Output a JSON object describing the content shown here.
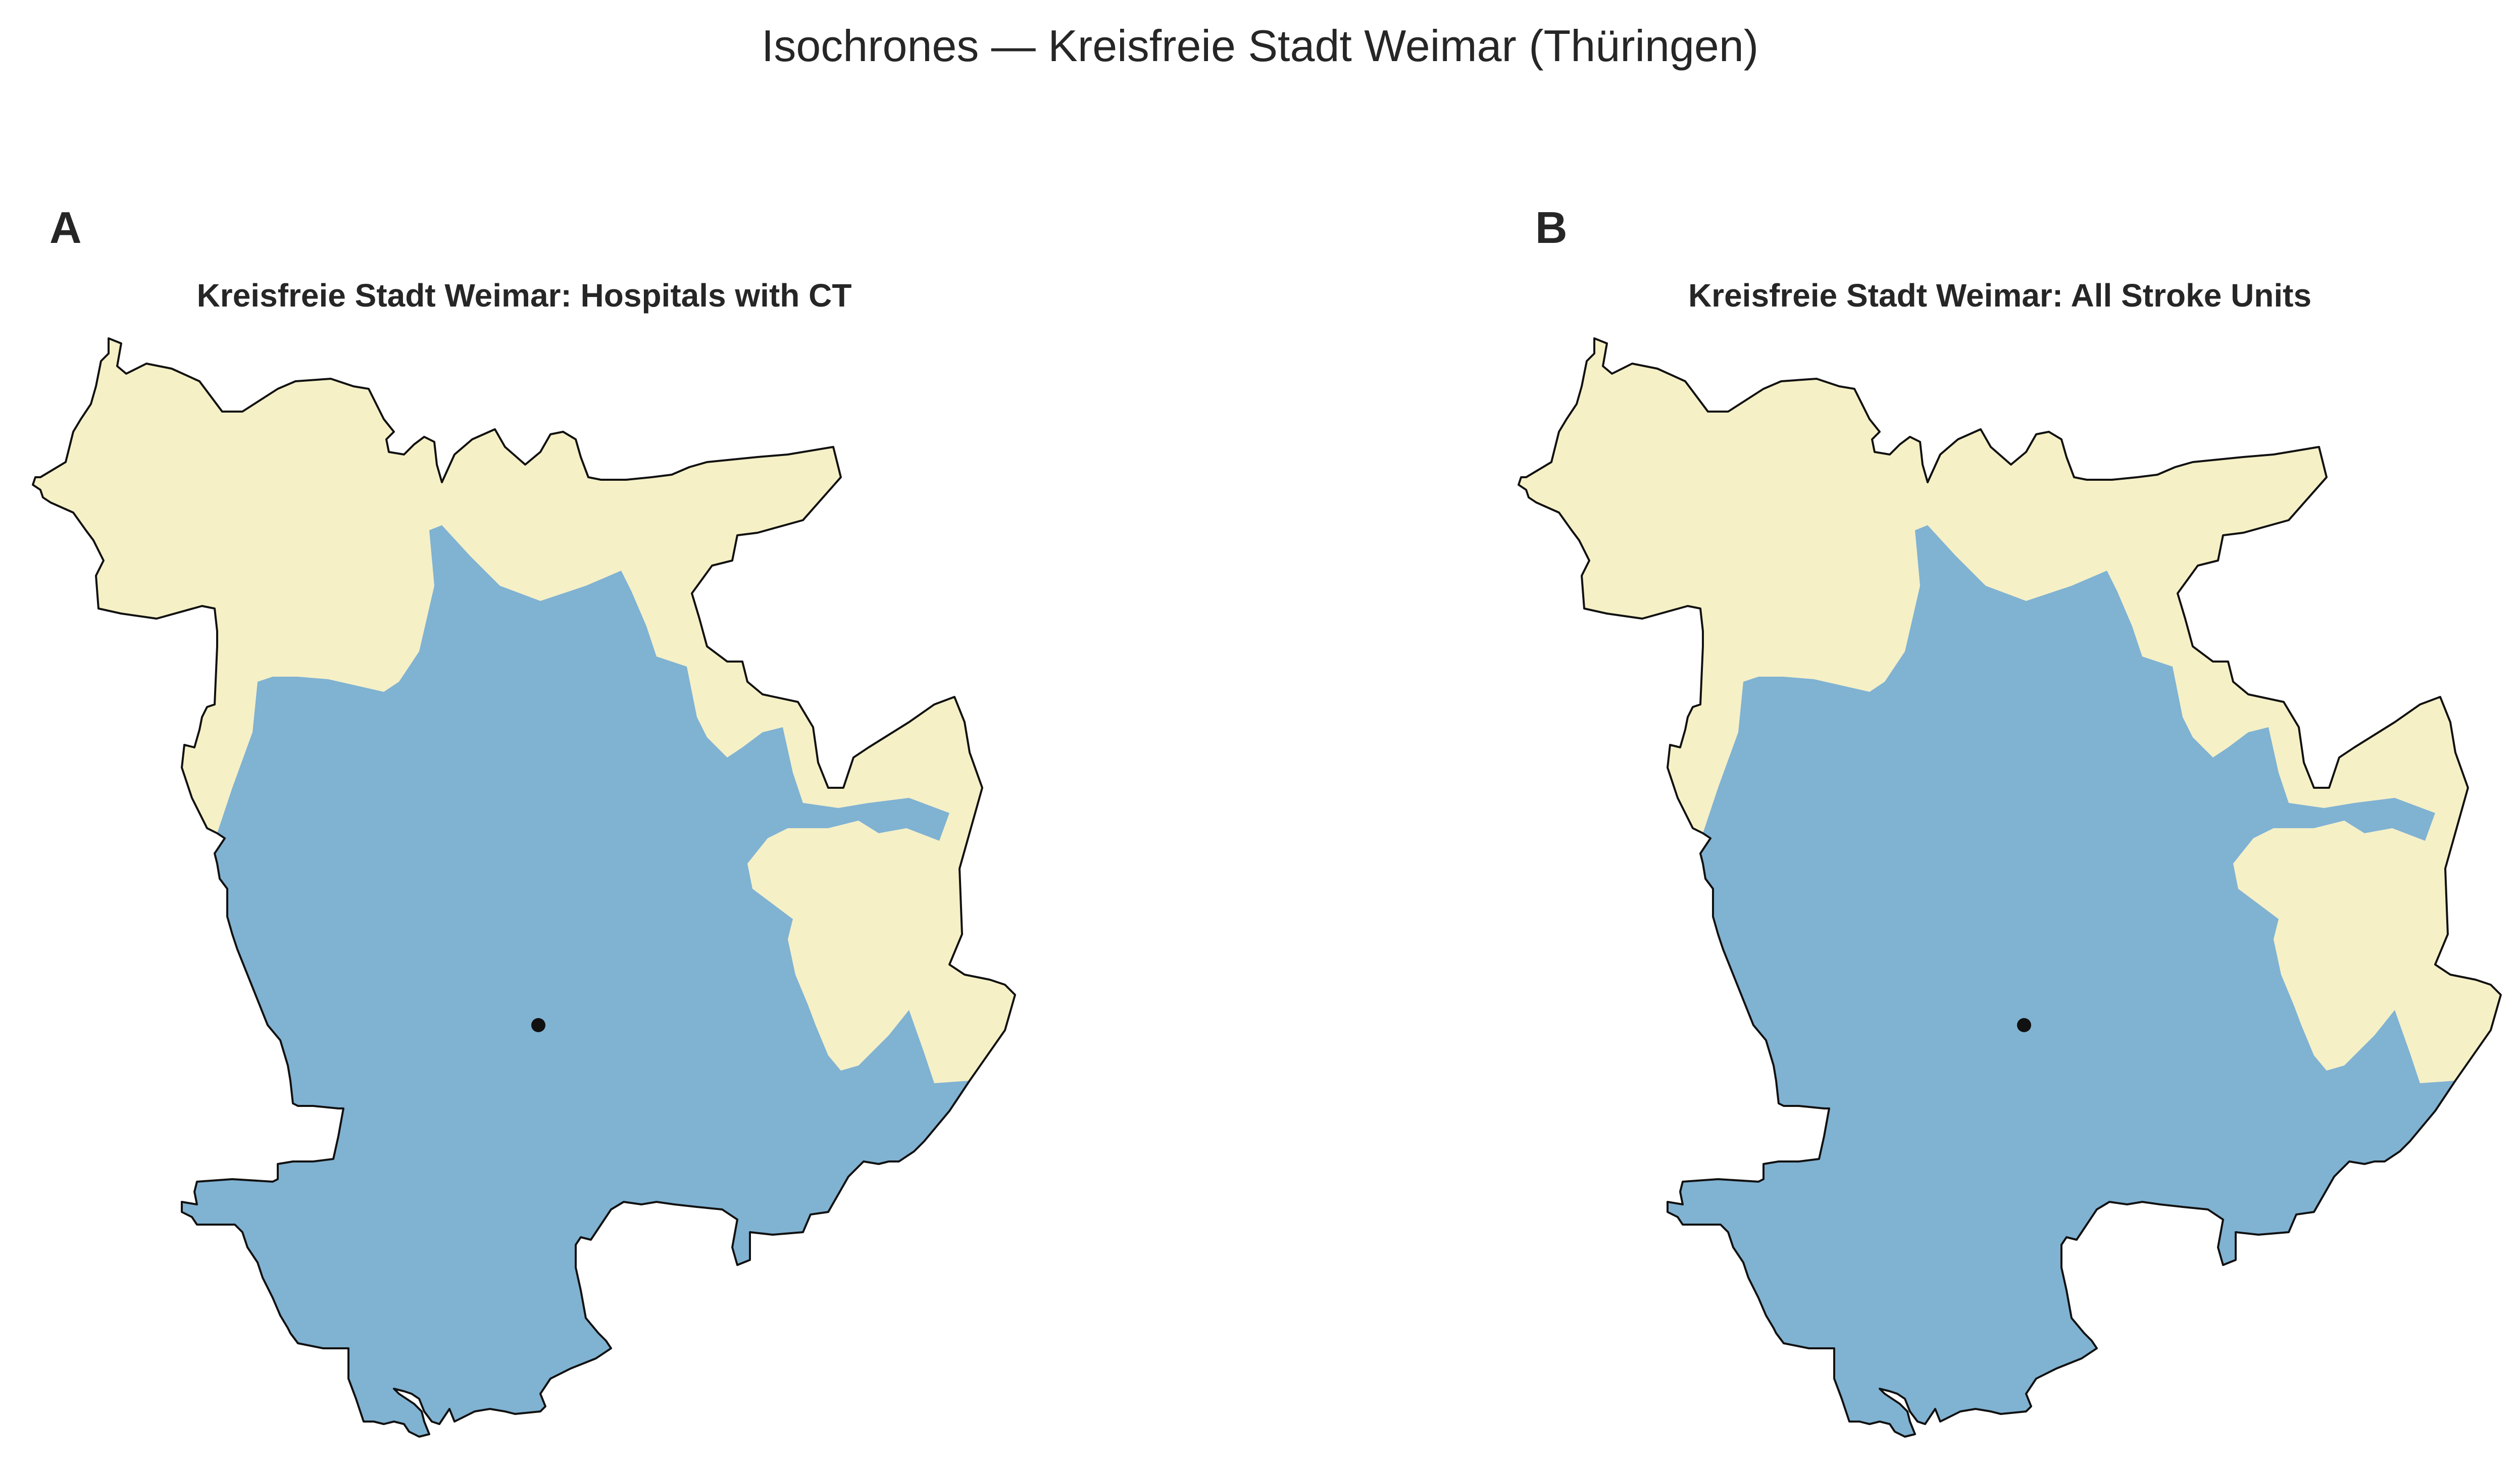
{
  "title": "Isochrones — Kreisfreie Stadt Weimar (Thüringen)",
  "colors": {
    "within_isochrone": "#80b2d2",
    "outside_isochrone": "#f5f0c6",
    "boundary": "#111111",
    "marker": "#111111"
  },
  "panels": [
    {
      "letter": "A",
      "title": "Kreisfreie Stadt Weimar: Hospitals with CT"
    },
    {
      "letter": "B",
      "title": "Kreisfreie Stadt Weimar: All Stroke Units"
    }
  ]
}
